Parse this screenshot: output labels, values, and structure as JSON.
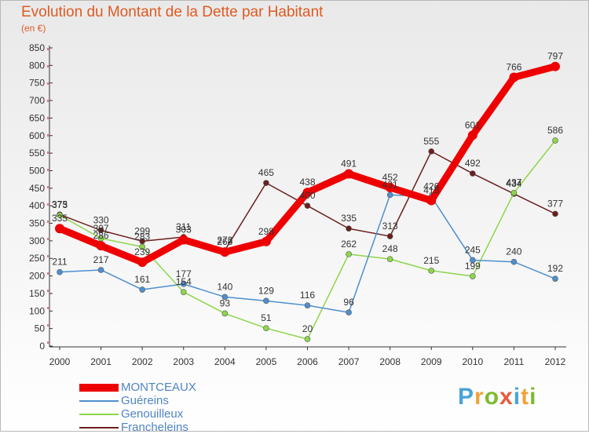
{
  "title": "Evolution du Montant de la Dette par Habitant",
  "subtitle": "(en €)",
  "brand": {
    "text": "Proxiti",
    "letter_colors": [
      "#4aa3d8",
      "#f2a23b",
      "#7dbb2e",
      "#e85a3c",
      "#4aa3d8",
      "#f2a23b",
      "#7dbb2e"
    ]
  },
  "chart_data": {
    "type": "line",
    "x": [
      "2000",
      "2001",
      "2002",
      "2003",
      "2004",
      "2005",
      "2006",
      "2007",
      "2008",
      "2009",
      "2010",
      "2011",
      "2012"
    ],
    "ylim": [
      0,
      850
    ],
    "yticks": [
      0,
      50,
      100,
      150,
      200,
      250,
      300,
      350,
      400,
      450,
      500,
      550,
      600,
      650,
      700,
      750,
      800,
      850
    ],
    "grid": false,
    "legend_position": "bottom-left",
    "series": [
      {
        "name": "MONTCEAUX",
        "color": "#ee0000",
        "values": [
          335,
          286,
          239,
          303,
          268,
          298,
          438,
          491,
          452,
          415,
          601,
          766,
          797
        ]
      },
      {
        "name": "Guéreins",
        "color": "#4f8fce",
        "values": [
          211,
          217,
          161,
          177,
          140,
          129,
          116,
          96,
          431,
          426,
          245,
          240,
          192
        ]
      },
      {
        "name": "Genouilleux",
        "color": "#8dd64c",
        "values": [
          373,
          307,
          283,
          154,
          93,
          51,
          20,
          262,
          248,
          215,
          199,
          437,
          586
        ]
      },
      {
        "name": "Francheleins",
        "color": "#6b1f1f",
        "values": [
          375,
          330,
          299,
          311,
          273,
          465,
          400,
          335,
          313,
          555,
          492,
          434,
          377
        ]
      }
    ]
  }
}
